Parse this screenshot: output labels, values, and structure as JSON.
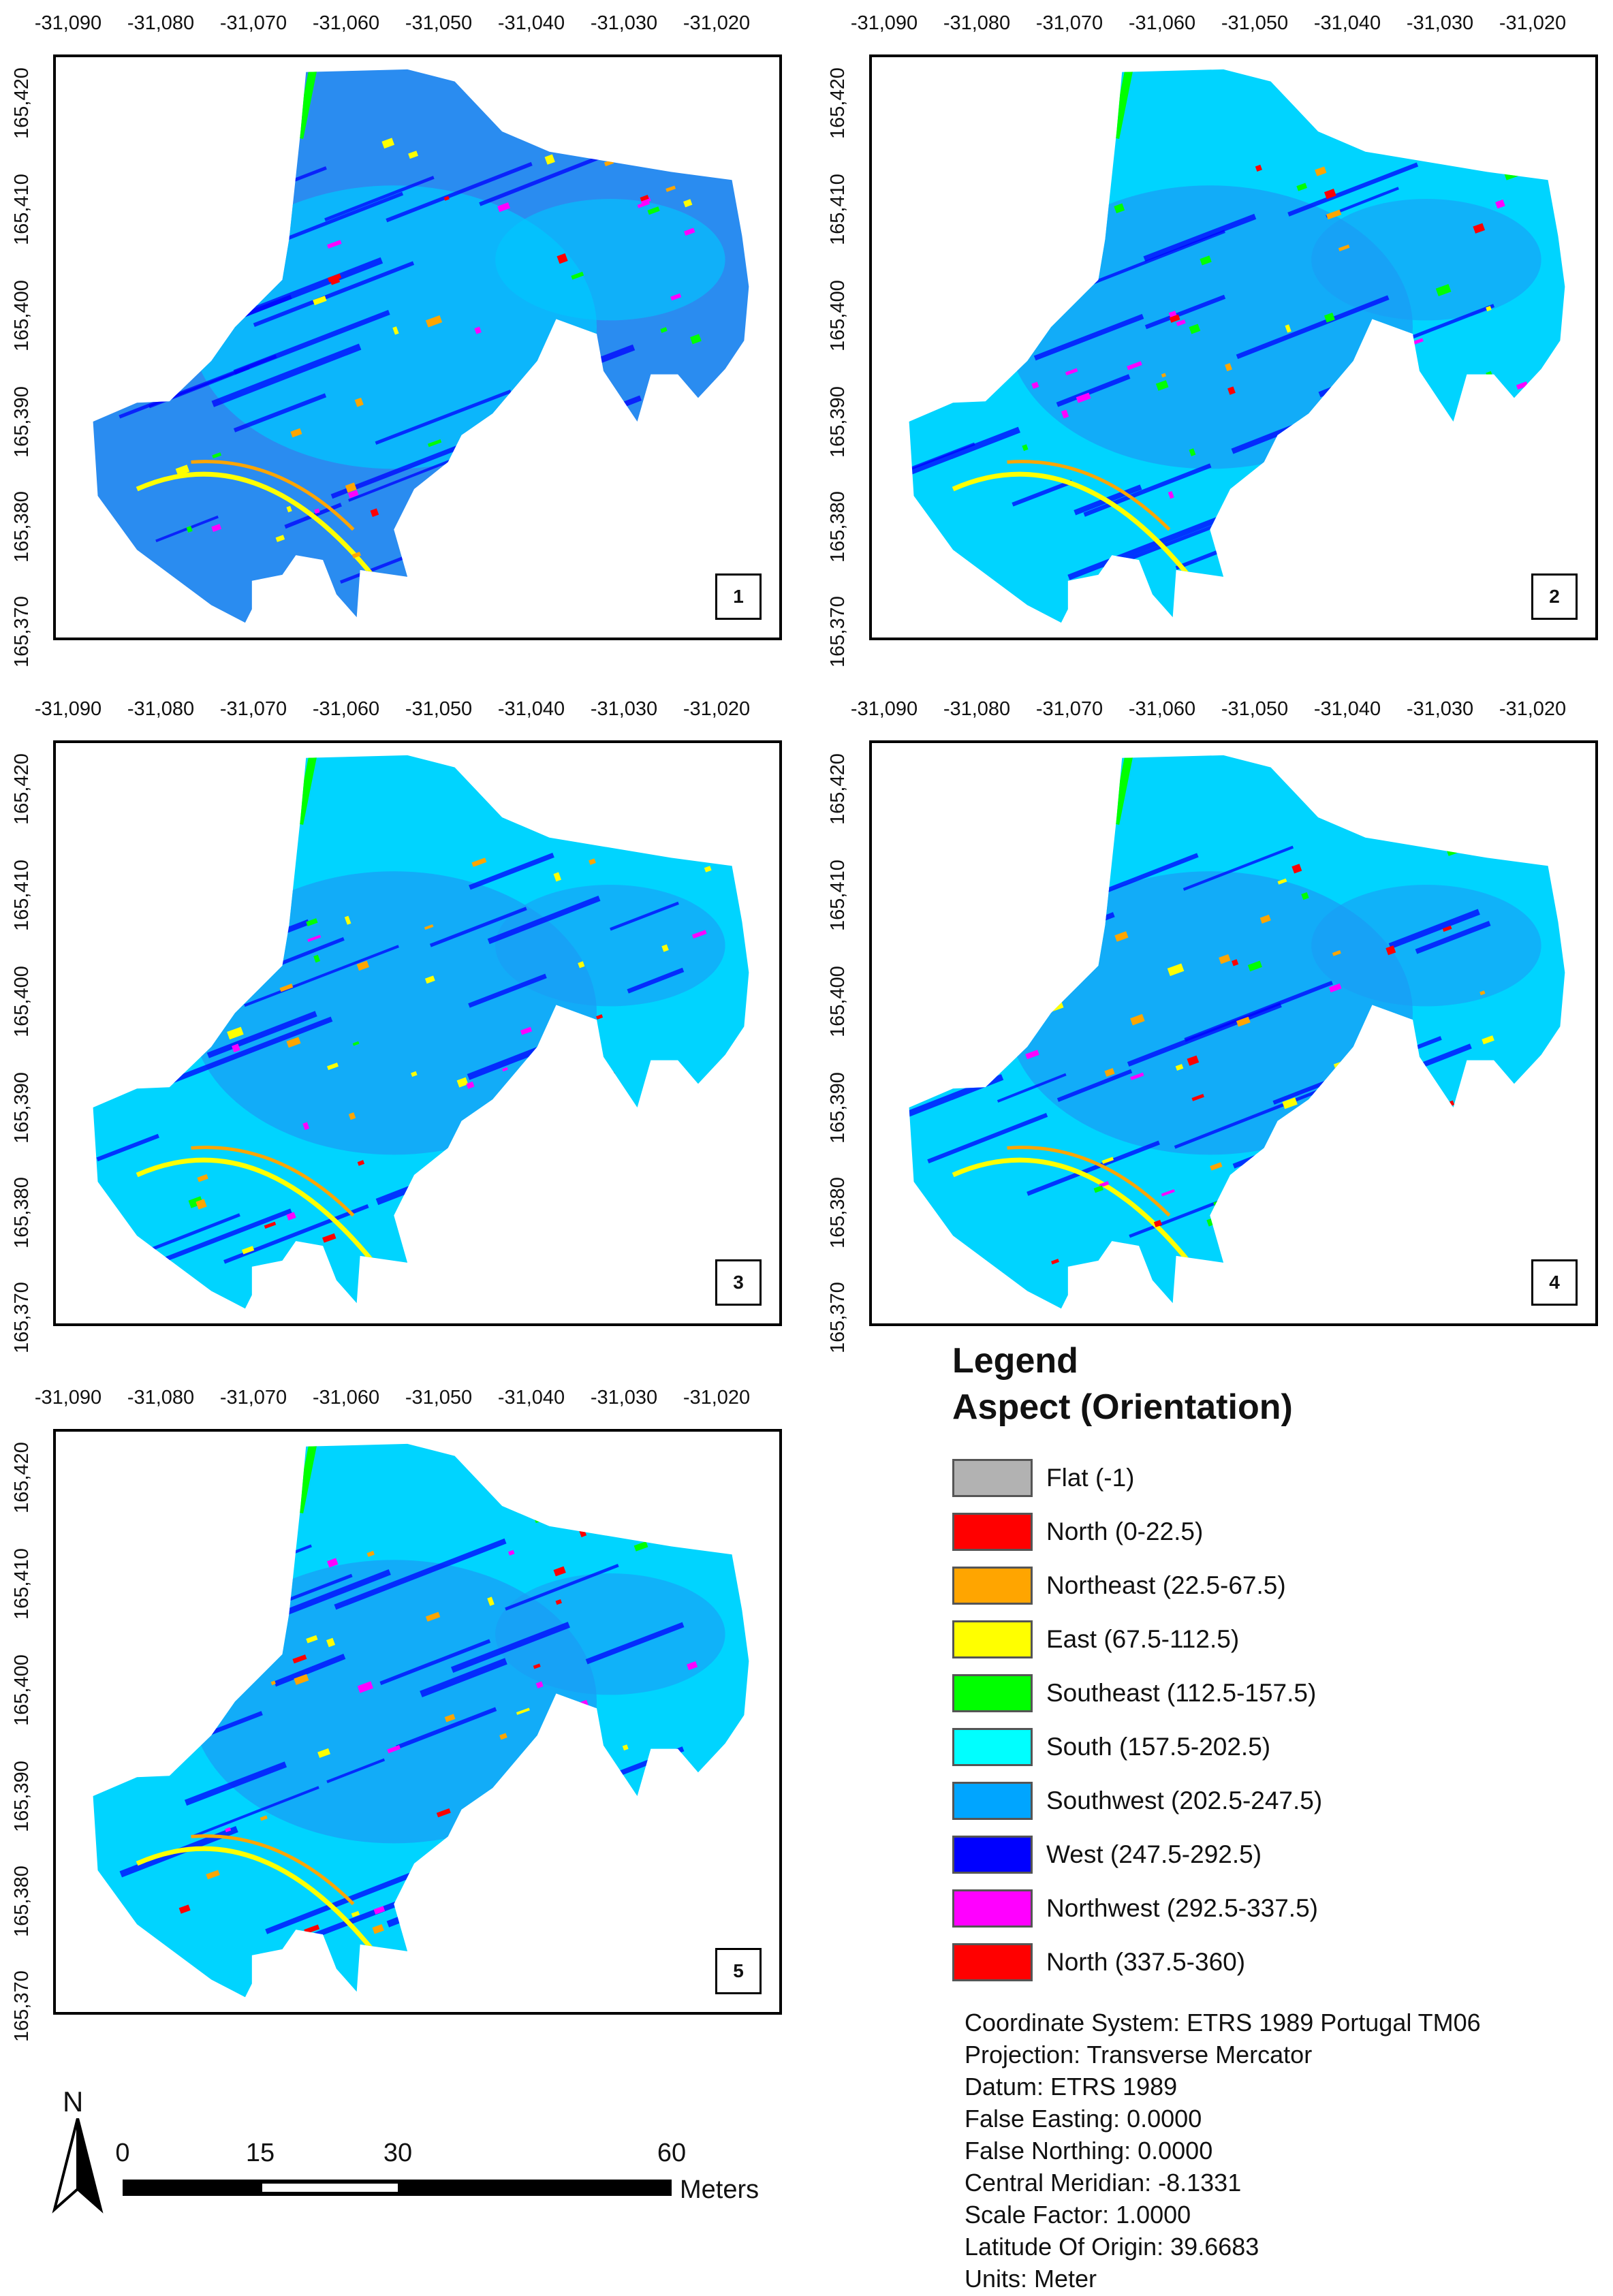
{
  "x_ticks": [
    "-31,090",
    "-31,080",
    "-31,070",
    "-31,060",
    "-31,050",
    "-31,040",
    "-31,030",
    "-31,020"
  ],
  "y_ticks": [
    "165,370",
    "165,380",
    "165,390",
    "165,400",
    "165,410",
    "165,420"
  ],
  "panels": [
    {
      "number": "1"
    },
    {
      "number": "2"
    },
    {
      "number": "3"
    },
    {
      "number": "4"
    },
    {
      "number": "5"
    }
  ],
  "legend": {
    "title_line1": "Legend",
    "title_line2": "Aspect (Orientation)",
    "items": [
      {
        "label": "Flat (-1)",
        "color": "#b2b2b2"
      },
      {
        "label": "North (0-22.5)",
        "color": "#ff0000"
      },
      {
        "label": "Northeast (22.5-67.5)",
        "color": "#ffa500"
      },
      {
        "label": "East (67.5-112.5)",
        "color": "#ffff00"
      },
      {
        "label": "Southeast (112.5-157.5)",
        "color": "#00ff00"
      },
      {
        "label": "South (157.5-202.5)",
        "color": "#00ffff"
      },
      {
        "label": "Southwest (202.5-247.5)",
        "color": "#00a5ff"
      },
      {
        "label": "West (247.5-292.5)",
        "color": "#0000ff"
      },
      {
        "label": "Northwest (292.5-337.5)",
        "color": "#ff00ff"
      },
      {
        "label": "North (337.5-360)",
        "color": "#ff0000"
      }
    ]
  },
  "projection_info": [
    "Coordinate System: ETRS 1989 Portugal TM06",
    "Projection: Transverse Mercator",
    "Datum: ETRS 1989",
    "False Easting: 0.0000",
    "False Northing: 0.0000",
    "Central Meridian: -8.1331",
    "Scale Factor: 1.0000",
    "Latitude Of Origin: 39.6683",
    "Units: Meter"
  ],
  "north_arrow": {
    "label": "N"
  },
  "scale_bar": {
    "ticks": [
      "0",
      "15",
      "30",
      "60"
    ],
    "unit": "Meters"
  }
}
